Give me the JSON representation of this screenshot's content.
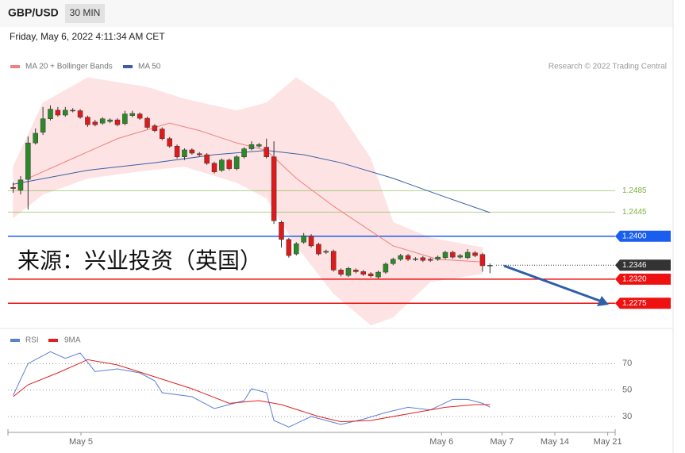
{
  "header": {
    "symbol": "GBP/USD",
    "interval": "30 MIN",
    "timestamp": "Friday, May 6, 2022 4:11:34 AM CET",
    "credit": "Research © 2022 Trading Central"
  },
  "chart_data": [
    {
      "type": "candlestick",
      "annotation": "来源：兴业投资（英国）",
      "up_color": "#2a8a2a",
      "down_color": "#e0191a",
      "x": [
        0,
        1,
        2,
        3,
        4,
        5,
        6,
        7,
        8,
        9,
        10,
        11,
        12,
        13,
        14,
        15,
        16,
        17,
        18,
        19,
        20,
        21,
        22,
        23,
        24,
        25,
        26,
        27,
        28,
        29,
        30,
        31,
        32,
        33,
        34,
        35,
        36,
        37,
        38,
        39,
        40,
        41,
        42,
        43,
        44,
        45,
        46,
        47,
        48,
        49,
        50,
        51,
        52,
        53,
        54,
        55,
        56,
        57,
        58,
        59,
        60,
        61,
        62,
        63,
        64
      ],
      "open": [
        1.2491,
        1.2486,
        1.2506,
        1.2574,
        1.2594,
        1.2619,
        1.2635,
        1.2626,
        1.2635,
        1.2634,
        1.2622,
        1.2613,
        1.2611,
        1.2614,
        1.2617,
        1.261,
        1.2625,
        1.2628,
        1.262,
        1.2606,
        1.26,
        1.2582,
        1.2568,
        1.2548,
        1.2561,
        1.2554,
        1.2552,
        1.2536,
        1.2523,
        1.2542,
        1.2526,
        1.2548,
        1.2563,
        1.2568,
        1.2566,
        1.2548,
        1.2426,
        1.2394,
        1.2367,
        1.2389,
        1.24,
        1.2385,
        1.237,
        1.2372,
        1.2337,
        1.2327,
        1.2337,
        1.2334,
        1.233,
        1.2324,
        1.2333,
        1.2349,
        1.2357,
        1.2364,
        1.2357,
        1.236,
        1.2357,
        1.2357,
        1.236,
        1.237,
        1.2361,
        1.236,
        1.2369,
        1.2366,
        1.2346
      ],
      "high": [
        1.25,
        1.2512,
        1.2586,
        1.2601,
        1.2641,
        1.2644,
        1.2641,
        1.2641,
        1.2639,
        1.2637,
        1.2625,
        1.2617,
        1.2622,
        1.262,
        1.262,
        1.2634,
        1.2634,
        1.2631,
        1.2623,
        1.2609,
        1.2603,
        1.2585,
        1.2571,
        1.2564,
        1.2564,
        1.2557,
        1.2555,
        1.2539,
        1.2545,
        1.2545,
        1.2551,
        1.2566,
        1.2577,
        1.2574,
        1.2582,
        1.2577,
        1.2429,
        1.2397,
        1.2389,
        1.2406,
        1.2404,
        1.2388,
        1.2375,
        1.2375,
        1.234,
        1.2343,
        1.234,
        1.2337,
        1.2333,
        1.2336,
        1.2351,
        1.236,
        1.2367,
        1.2367,
        1.2361,
        1.2363,
        1.236,
        1.2364,
        1.2373,
        1.2373,
        1.2367,
        1.2376,
        1.2372,
        1.2369,
        1.2349
      ],
      "low": [
        1.2481,
        1.2478,
        1.245,
        1.2571,
        1.2589,
        1.2616,
        1.2623,
        1.2623,
        1.2631,
        1.2619,
        1.2604,
        1.2605,
        1.2608,
        1.2611,
        1.2605,
        1.2607,
        1.2622,
        1.2617,
        1.26,
        1.2594,
        1.2579,
        1.2565,
        1.2545,
        1.2542,
        1.2552,
        1.2549,
        1.2533,
        1.2517,
        1.252,
        1.2523,
        1.2523,
        1.2545,
        1.256,
        1.2565,
        1.2545,
        1.2423,
        1.2379,
        1.236,
        1.2364,
        1.2386,
        1.2379,
        1.2364,
        1.2367,
        1.2334,
        1.2325,
        1.2324,
        1.2331,
        1.2326,
        1.2323,
        1.2321,
        1.233,
        1.2346,
        1.2354,
        1.2354,
        1.2354,
        1.2352,
        1.2352,
        1.2354,
        1.2357,
        1.2358,
        1.2358,
        1.2357,
        1.2361,
        1.2334,
        1.2331
      ],
      "close": [
        1.2489,
        1.2505,
        1.2574,
        1.2592,
        1.2619,
        1.2637,
        1.2626,
        1.2635,
        1.2634,
        1.2622,
        1.2608,
        1.2608,
        1.2619,
        1.2617,
        1.2608,
        1.2628,
        1.2629,
        1.262,
        1.2603,
        1.2597,
        1.2582,
        1.2568,
        1.2548,
        1.2561,
        1.2555,
        1.2552,
        1.2536,
        1.252,
        1.2542,
        1.2526,
        1.2548,
        1.2563,
        1.2571,
        1.2571,
        1.2548,
        1.2429,
        1.2394,
        1.2364,
        1.2386,
        1.2401,
        1.2382,
        1.2367,
        1.2372,
        1.2337,
        1.2329,
        1.234,
        1.2334,
        1.2329,
        1.2326,
        1.2333,
        1.2348,
        1.2357,
        1.2364,
        1.2357,
        1.2358,
        1.2355,
        1.2355,
        1.2361,
        1.237,
        1.2361,
        1.2364,
        1.237,
        1.2364,
        1.2345,
        1.2346
      ],
      "bands": {
        "color": "#fde3e3",
        "x": [
          0,
          4,
          10,
          18,
          23,
          30,
          34,
          38,
          43,
          48,
          51,
          56,
          63
        ],
        "upper": [
          1.253,
          1.2649,
          1.2696,
          1.2678,
          1.2656,
          1.2634,
          1.2649,
          1.2696,
          1.2649,
          1.2545,
          1.2426,
          1.2397,
          1.2379
        ],
        "lower": [
          1.2434,
          1.2478,
          1.2508,
          1.2523,
          1.253,
          1.25,
          1.2471,
          1.2382,
          1.2293,
          1.2234,
          1.2249,
          1.2315,
          1.233
        ]
      },
      "series": [
        {
          "name": "MA 20 + Bollinger Bands",
          "color": "#f08080",
          "x": [
            2,
            8,
            14,
            21,
            25,
            30,
            34,
            38,
            43,
            47,
            51,
            57,
            63
          ],
          "values": [
            1.2508,
            1.2545,
            1.2582,
            1.2611,
            1.2597,
            1.2574,
            1.256,
            1.2508,
            1.2456,
            1.2419,
            1.2382,
            1.2357,
            1.2352
          ]
        },
        {
          "name": "MA 50",
          "color": "#3a5fa8",
          "x": [
            0,
            10,
            19,
            27,
            34,
            39,
            44,
            51,
            57,
            64
          ],
          "values": [
            1.2497,
            1.2523,
            1.2537,
            1.2552,
            1.256,
            1.2552,
            1.2537,
            1.2508,
            1.2478,
            1.2444
          ]
        }
      ],
      "levels": [
        {
          "value": 1.2485,
          "label": "1.2485",
          "color": "#7cb342",
          "tag": false,
          "dotted": false
        },
        {
          "value": 1.2445,
          "label": "1.2445",
          "color": "#7cb342",
          "tag": false,
          "dotted": false
        },
        {
          "value": 1.24,
          "label": "1.2400",
          "color": "#1a5ef0",
          "tag": true,
          "dotted": false
        },
        {
          "value": 1.2346,
          "label": "1.2346",
          "color": "#333333",
          "tag": true,
          "dotted": true
        },
        {
          "value": 1.232,
          "label": "1.2320",
          "color": "#ee1111",
          "tag": true,
          "dotted": false
        },
        {
          "value": 1.2275,
          "label": "1.2275",
          "color": "#ee1111",
          "tag": true,
          "dotted": false
        }
      ],
      "xlim": [
        -0.7,
        80.8
      ],
      "ylim": [
        1.2231,
        1.27
      ]
    },
    {
      "type": "line",
      "series": [
        {
          "name": "RSI",
          "color": "#5b7fd6",
          "x": [
            0,
            2,
            5,
            7,
            9,
            11,
            14,
            17,
            19,
            20,
            24,
            27,
            29,
            31,
            32,
            34,
            35,
            37,
            40,
            42,
            44,
            47,
            50,
            53,
            56,
            59,
            61,
            63,
            64
          ],
          "values": [
            46,
            70,
            79,
            74,
            78,
            64,
            66,
            63,
            57,
            48,
            45,
            36,
            39,
            42,
            51,
            48,
            27,
            22,
            30,
            27,
            24,
            28,
            33,
            37,
            35,
            43,
            43,
            40,
            37
          ]
        },
        {
          "name": "9MA",
          "color": "#e02020",
          "x": [
            0,
            2,
            6,
            10,
            14,
            19,
            24,
            29,
            33,
            36,
            41,
            44,
            48,
            54,
            58,
            62,
            64
          ],
          "values": [
            45,
            54,
            63,
            73,
            69,
            60,
            51,
            40,
            42,
            39,
            30,
            26,
            27,
            33,
            37,
            39,
            39
          ]
        }
      ],
      "xlim": [
        -0.7,
        80.8
      ],
      "ylim": [
        18,
        96
      ],
      "yticks": [
        30,
        50,
        70
      ],
      "xticks": [
        {
          "value": 9.1,
          "label": "May 5"
        },
        {
          "value": 57.5,
          "label": "May 6"
        },
        {
          "value": 65.6,
          "label": "May 7"
        },
        {
          "value": 72.7,
          "label": "May 14"
        },
        {
          "value": 79.8,
          "label": "May 21"
        }
      ]
    }
  ]
}
